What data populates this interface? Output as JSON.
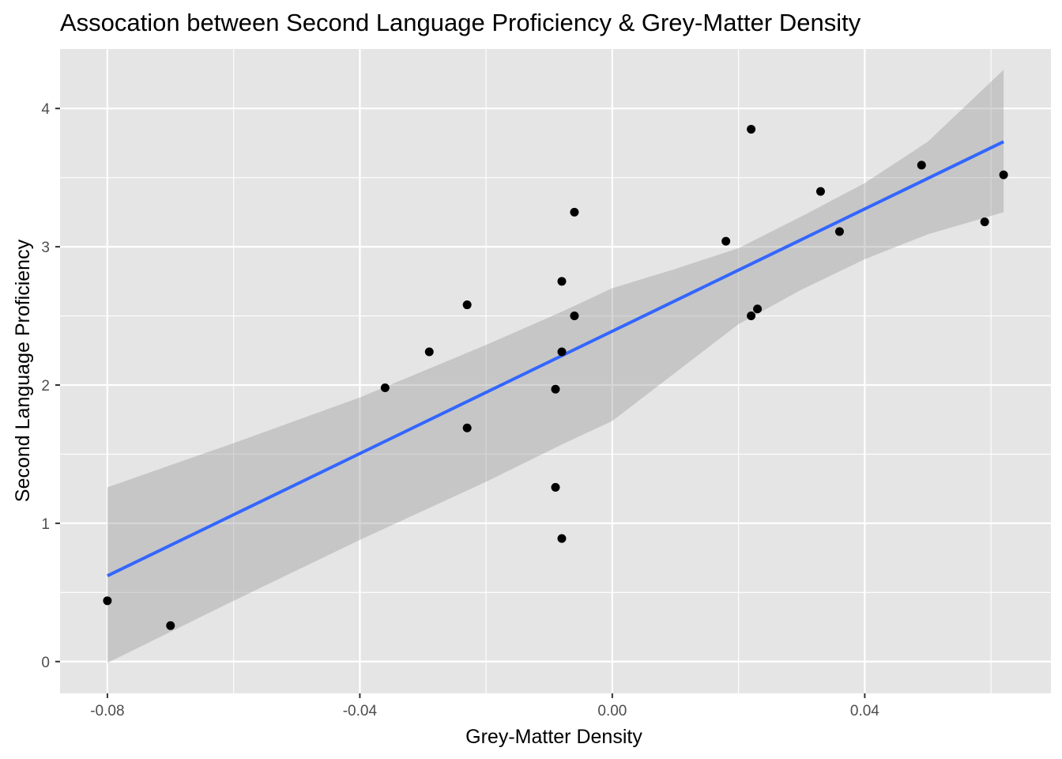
{
  "chart_data": {
    "type": "scatter",
    "title": "Assocation between Second Language Proficiency & Grey-Matter Density",
    "xlabel": "Grey-Matter Density",
    "ylabel": "Second Language Proficiency",
    "xlim": [
      -0.0875,
      0.0695
    ],
    "ylim": [
      -0.23,
      4.43
    ],
    "x_ticks": [
      {
        "value": -0.08,
        "label": "-0.08"
      },
      {
        "value": -0.04,
        "label": "-0.04"
      },
      {
        "value": 0.0,
        "label": "0.00"
      },
      {
        "value": 0.04,
        "label": "0.04"
      }
    ],
    "y_ticks": [
      {
        "value": 0,
        "label": "0"
      },
      {
        "value": 1,
        "label": "1"
      },
      {
        "value": 2,
        "label": "2"
      },
      {
        "value": 3,
        "label": "3"
      },
      {
        "value": 4,
        "label": "4"
      }
    ],
    "x_minor": [
      -0.06,
      -0.02,
      0.02,
      0.06
    ],
    "y_minor": [
      0.5,
      1.5,
      2.5,
      3.5
    ],
    "grid": true,
    "panel_background": "#e5e5e5",
    "grid_color": "#ffffff",
    "point_color": "#000000",
    "line_color": "#3366ff",
    "ribbon_color": "#999999",
    "points": [
      {
        "x": -0.08,
        "y": 0.44
      },
      {
        "x": -0.07,
        "y": 0.26
      },
      {
        "x": -0.036,
        "y": 1.98
      },
      {
        "x": -0.029,
        "y": 2.24
      },
      {
        "x": -0.023,
        "y": 2.58
      },
      {
        "x": -0.023,
        "y": 1.69
      },
      {
        "x": -0.009,
        "y": 1.97
      },
      {
        "x": -0.009,
        "y": 1.26
      },
      {
        "x": -0.008,
        "y": 2.75
      },
      {
        "x": -0.008,
        "y": 2.24
      },
      {
        "x": -0.008,
        "y": 0.89
      },
      {
        "x": -0.006,
        "y": 3.25
      },
      {
        "x": -0.006,
        "y": 2.5
      },
      {
        "x": 0.018,
        "y": 3.04
      },
      {
        "x": 0.022,
        "y": 3.85
      },
      {
        "x": 0.022,
        "y": 2.5
      },
      {
        "x": 0.023,
        "y": 2.55
      },
      {
        "x": 0.033,
        "y": 3.4
      },
      {
        "x": 0.036,
        "y": 3.11
      },
      {
        "x": 0.049,
        "y": 3.59
      },
      {
        "x": 0.059,
        "y": 3.18
      },
      {
        "x": 0.062,
        "y": 3.52
      }
    ],
    "fit_line": {
      "x": [
        -0.08,
        0.062
      ],
      "y": [
        0.62,
        3.76
      ]
    },
    "confidence_band": {
      "x": [
        -0.08,
        -0.06,
        -0.04,
        -0.02,
        -0.008,
        0.0,
        0.01,
        0.02,
        0.03,
        0.04,
        0.05,
        0.062
      ],
      "lower": [
        -0.01,
        0.44,
        0.88,
        1.3,
        1.57,
        1.74,
        2.09,
        2.44,
        2.69,
        2.91,
        3.09,
        3.25
      ],
      "upper": [
        1.26,
        1.58,
        1.91,
        2.29,
        2.53,
        2.7,
        2.84,
        2.99,
        3.22,
        3.46,
        3.76,
        4.28
      ]
    }
  }
}
